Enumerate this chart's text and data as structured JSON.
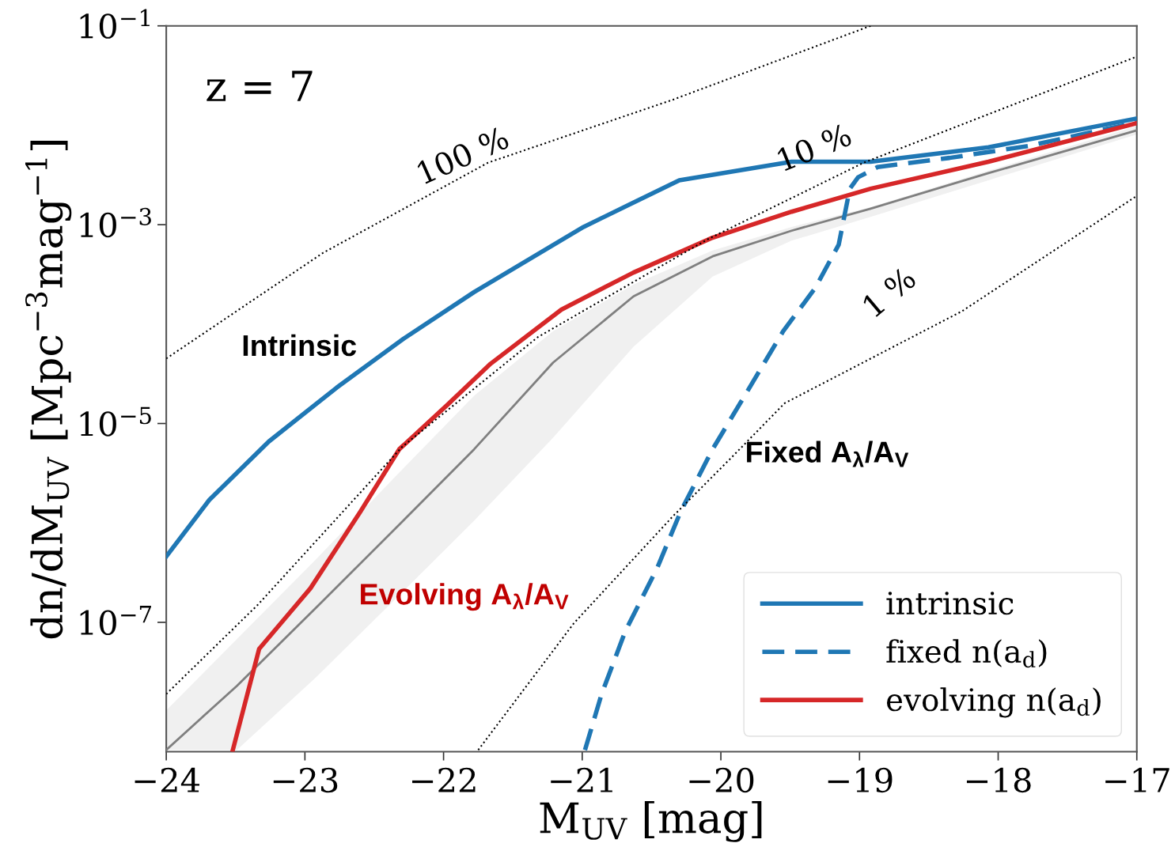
{
  "chart_data": {
    "type": "line",
    "xlabel": "M$_{UV}$ [mag]",
    "ylabel": "dn/dM$_{UV}$ [Mpc$^{−3}$mag$^{−1}$]",
    "log": "y",
    "xlim": [
      -24,
      -17
    ],
    "xticks": [
      {
        "value": -24,
        "label": "−24"
      },
      {
        "value": -23,
        "label": "−23"
      },
      {
        "value": -22,
        "label": "−22"
      },
      {
        "value": -21,
        "label": "−21"
      },
      {
        "value": -20,
        "label": "−20"
      },
      {
        "value": -19,
        "label": "−19"
      },
      {
        "value": -18,
        "label": "−18"
      },
      {
        "value": -17,
        "label": "−17"
      }
    ],
    "ylim": [
      5e-09,
      0.1
    ],
    "yticks": [
      {
        "value": 1e-07,
        "label": "10$^{−7}$"
      },
      {
        "value": 1e-05,
        "label": "10$^{−5}$"
      },
      {
        "value": 0.001,
        "label": "10$^{−3}$"
      },
      {
        "value": 0.1,
        "label": "10$^{−1}$"
      }
    ],
    "grid": false,
    "legend": "bottom right",
    "marker": "none",
    "series": [
      {
        "color": "#000000",
        "line_style": "dotted",
        "x": [
          -24,
          -22.87,
          -21.68,
          -20.35,
          -18.92
        ],
        "values": [
          4.5e-05,
          0.00052,
          0.0042,
          0.018,
          0.1
        ]
      },
      {
        "color": "#000000",
        "line_style": "dotted",
        "x": [
          -24,
          -23.34,
          -22.3,
          -21.32,
          -20.09,
          -18.97,
          -17
        ],
        "values": [
          1.9e-08,
          1.5e-07,
          5.8e-06,
          7.4e-05,
          0.00072,
          0.0042,
          0.049
        ]
      },
      {
        "color": "#000000",
        "line_style": "dotted",
        "x": [
          -21.75,
          -21.06,
          -20.35,
          -19.92,
          -19.54,
          -18.26,
          -17
        ],
        "values": [
          5.2e-09,
          9.8e-08,
          1.15e-06,
          4.6e-06,
          1.6e-05,
          0.000135,
          0.00195
        ]
      },
      {
        "color": "#7f7f7f",
        "line_style": "solid",
        "x": [
          -24,
          -23.49,
          -22.92,
          -22.35,
          -21.78,
          -21.21,
          -20.63,
          -20.06,
          -19.49,
          -18.92,
          -18.07,
          -17
        ],
        "values": [
          5.2e-09,
          2.3e-08,
          1.4e-07,
          8.7e-07,
          5.5e-06,
          4.1e-05,
          0.00019,
          0.00048,
          0.00087,
          0.00145,
          0.0033,
          0.0089
        ],
        "lower": [
          5.2e-09,
          5.2e-09,
          2.8e-08,
          1.7e-07,
          1.05e-06,
          7.2e-06,
          5.9e-05,
          0.0003,
          0.00069,
          0.0012,
          0.0028,
          0.0081
        ],
        "upper": [
          1.3e-08,
          6.8e-08,
          4.3e-07,
          2.9e-06,
          1.9e-05,
          8.5e-05,
          0.00025,
          0.00055,
          0.00095,
          0.0015,
          0.0035,
          0.0098
        ]
      },
      {
        "name": "intrinsic",
        "color": "#1f77b4",
        "line_style": "solid",
        "x": [
          -24,
          -23.69,
          -23.26,
          -22.77,
          -22.29,
          -21.78,
          -20.99,
          -20.3,
          -19.49,
          -18.92,
          -18.07,
          -17
        ],
        "values": [
          4.6e-07,
          1.7e-06,
          6.6e-06,
          2.3e-05,
          7.1e-05,
          0.00021,
          0.00095,
          0.0028,
          0.0043,
          0.0043,
          0.006,
          0.0117
        ]
      },
      {
        "name": "fixed n(a$_{d}$)",
        "color": "#1f77b4",
        "line_style": "dashed",
        "x": [
          -20.98,
          -20.86,
          -20.69,
          -20.46,
          -20.29,
          -20.06,
          -19.81,
          -19.55,
          -19.32,
          -19.15,
          -19.07,
          -19.01,
          -18.87,
          -18.35,
          -17.78,
          -17
        ],
        "values": [
          5.2e-09,
          1.9e-08,
          8.1e-08,
          3.5e-07,
          1.3e-06,
          5.5e-06,
          2.1e-05,
          8.5e-05,
          0.00023,
          0.00063,
          0.0023,
          0.003,
          0.0038,
          0.0047,
          0.0062,
          0.0107
        ]
      },
      {
        "name": "evolving n(a$_{d}$)",
        "color": "#d62728",
        "line_style": "solid",
        "x": [
          -23.52,
          -23.33,
          -22.96,
          -22.6,
          -22.32,
          -21.96,
          -21.66,
          -21.15,
          -20.63,
          -20.06,
          -19.49,
          -18.92,
          -18.07,
          -17
        ],
        "values": [
          5.2e-09,
          5.4e-08,
          2.2e-07,
          1.3e-06,
          5.5e-06,
          1.6e-05,
          4e-05,
          0.00014,
          0.00033,
          0.00074,
          0.00135,
          0.0023,
          0.0043,
          0.0105
        ]
      }
    ],
    "annotations": [
      "z = 7",
      "100 %",
      "10 %",
      "1 %",
      "Intrinsic",
      "Fixed A$_{λ}$/A$_{V}$",
      "Evolving A$_{λ}$/A$_{V}$"
    ]
  }
}
